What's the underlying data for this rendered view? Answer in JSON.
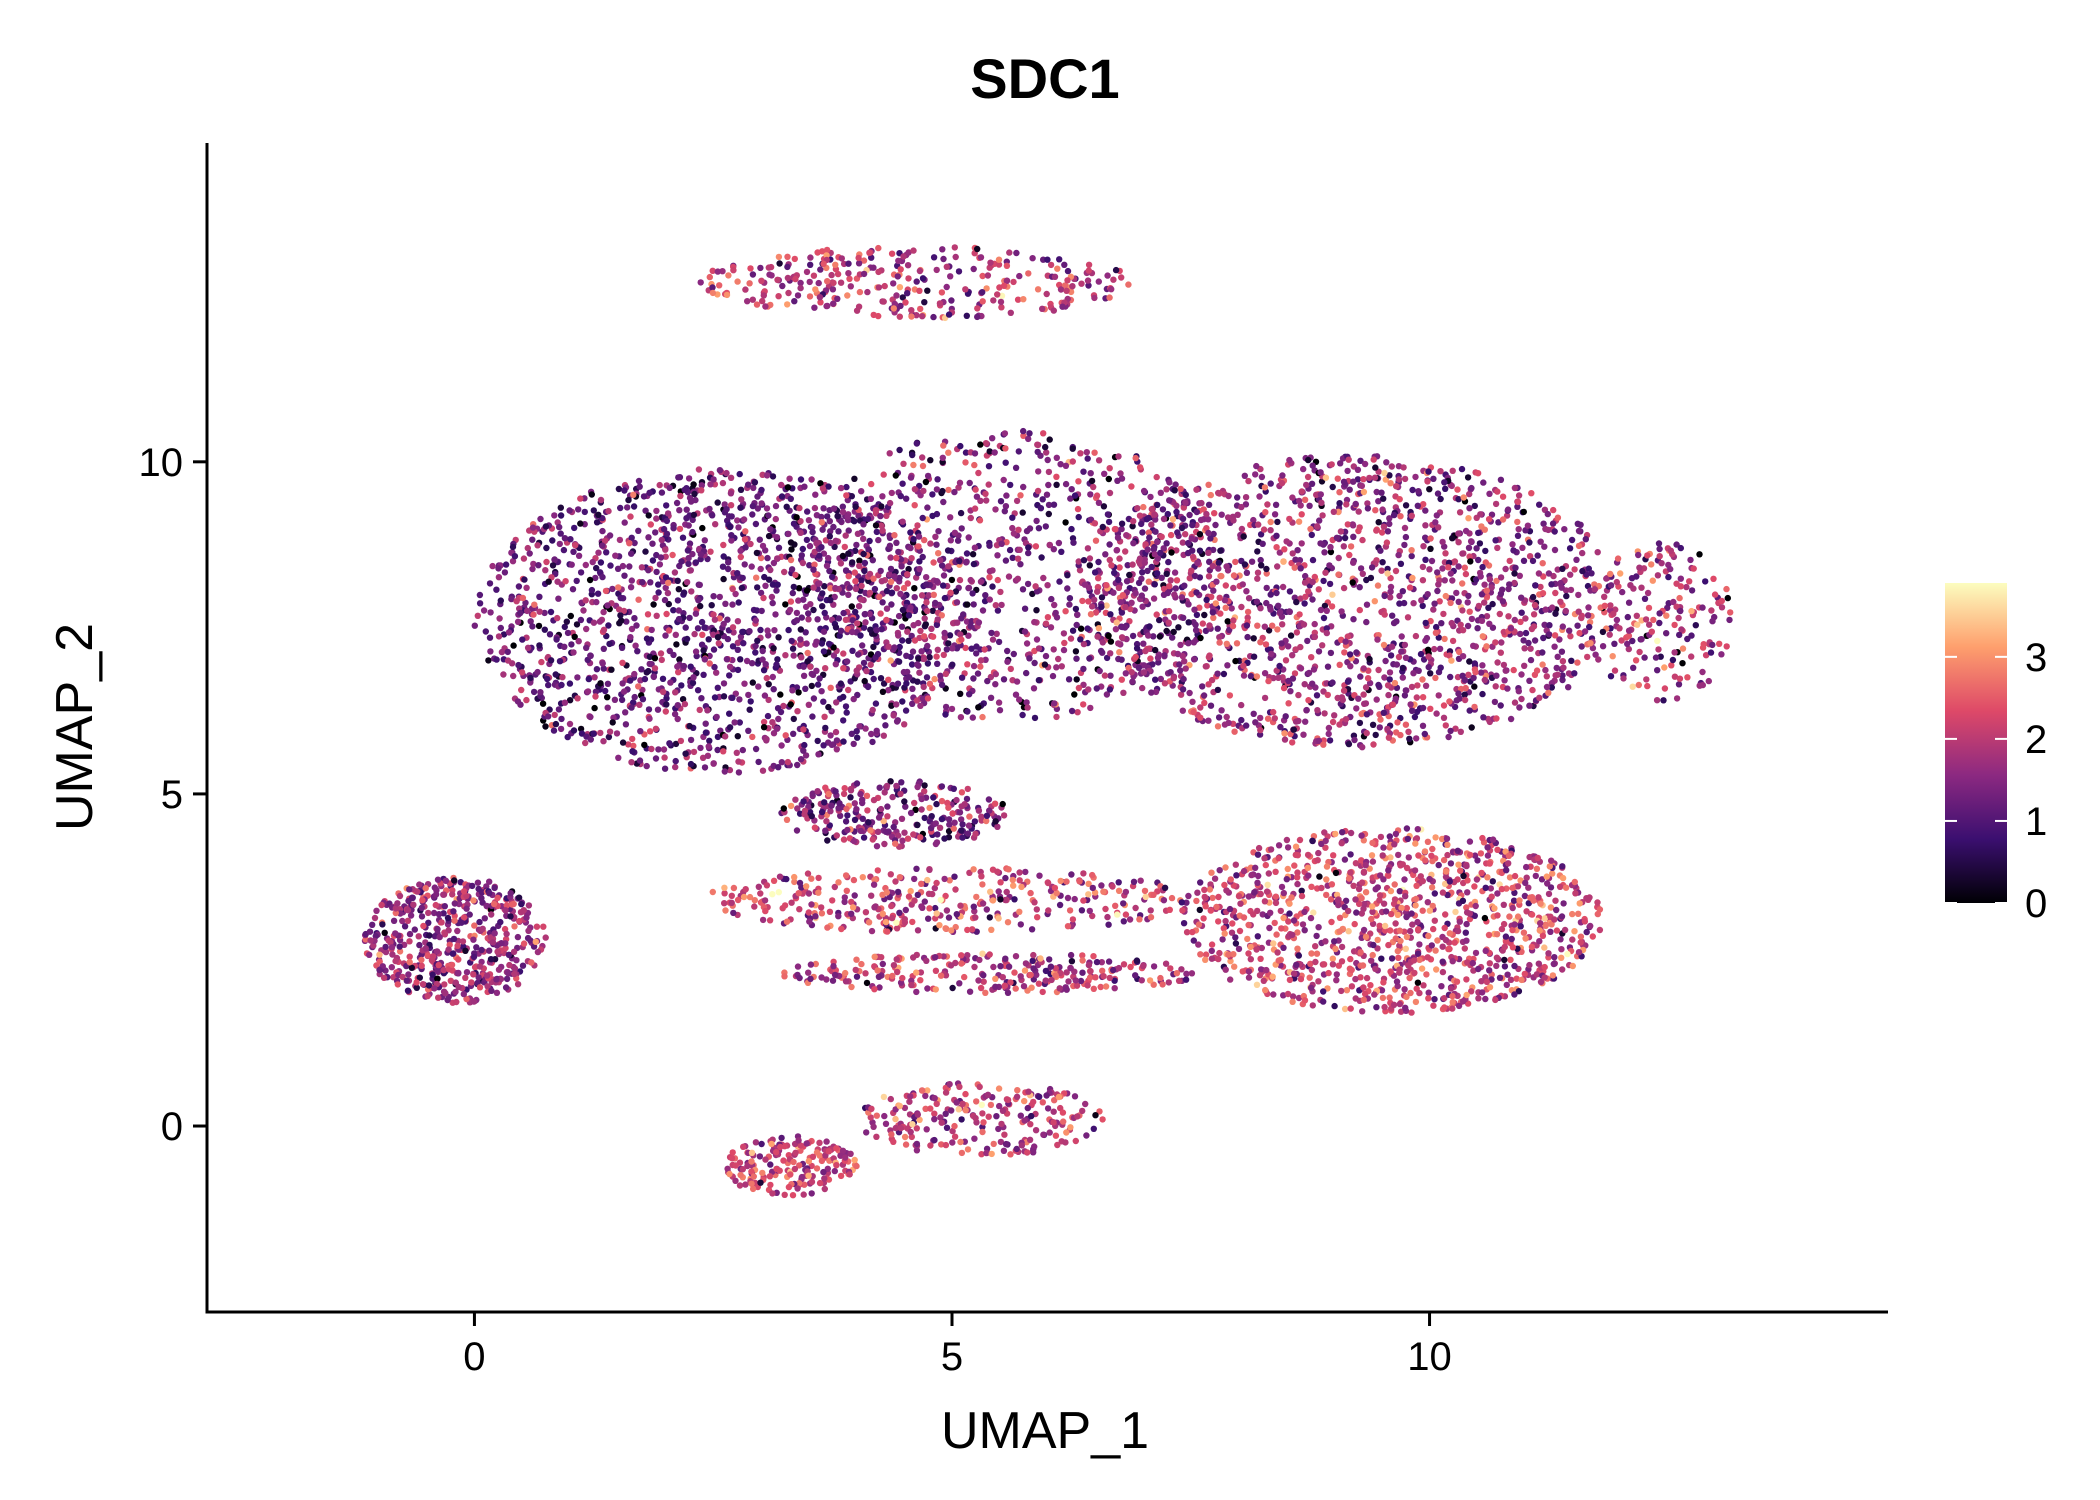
{
  "chart_data": {
    "type": "scatter",
    "title": "SDC1",
    "xlabel": "UMAP_1",
    "ylabel": "UMAP_2",
    "xlim": [
      -2.8,
      14.8
    ],
    "ylim": [
      -2.8,
      14.8
    ],
    "x_ticks": [
      0,
      5,
      10
    ],
    "y_ticks": [
      0,
      5,
      10
    ],
    "x_tick_labels": [
      "0",
      "5",
      "10"
    ],
    "y_tick_labels": [
      "0",
      "5",
      "10"
    ],
    "color_scale": {
      "name": "magma",
      "range": [
        0,
        3.9
      ],
      "ticks": [
        0,
        1,
        2,
        3
      ],
      "tick_labels": [
        "0",
        "1",
        "2",
        "3"
      ],
      "colors": [
        "#000004",
        "#3b0f70",
        "#8c2981",
        "#de4968",
        "#fe9f6d",
        "#fcfdbf"
      ]
    },
    "clusters": [
      {
        "name": "main-left",
        "cx": 2.6,
        "cy": 7.6,
        "rx": 2.6,
        "ry": 2.3,
        "n": 1600,
        "mean": 1.25,
        "sd": 0.6
      },
      {
        "name": "main-right",
        "cx": 9.2,
        "cy": 7.9,
        "rx": 2.8,
        "ry": 2.2,
        "n": 1600,
        "mean": 1.6,
        "sd": 0.65
      },
      {
        "name": "main-center",
        "cx": 5.6,
        "cy": 8.3,
        "rx": 2.3,
        "ry": 2.2,
        "n": 900,
        "mean": 1.4,
        "sd": 0.65
      },
      {
        "name": "top-arc",
        "cx": 4.6,
        "cy": 12.7,
        "rx": 2.3,
        "ry": 0.55,
        "n": 320,
        "mean": 2.0,
        "sd": 0.6
      },
      {
        "name": "right-tip",
        "cx": 12.4,
        "cy": 7.6,
        "rx": 0.8,
        "ry": 1.2,
        "n": 180,
        "mean": 1.8,
        "sd": 0.7
      },
      {
        "name": "lower-right",
        "cx": 9.6,
        "cy": 3.1,
        "rx": 2.2,
        "ry": 1.4,
        "n": 1100,
        "mean": 2.1,
        "sd": 0.65
      },
      {
        "name": "left-island",
        "cx": -0.2,
        "cy": 2.8,
        "rx": 0.95,
        "ry": 0.95,
        "n": 520,
        "mean": 1.6,
        "sd": 0.6
      },
      {
        "name": "mid-band",
        "cx": 5.0,
        "cy": 3.4,
        "rx": 2.6,
        "ry": 0.5,
        "n": 360,
        "mean": 2.1,
        "sd": 0.65
      },
      {
        "name": "lower-band",
        "cx": 5.4,
        "cy": 2.3,
        "rx": 2.2,
        "ry": 0.3,
        "n": 260,
        "mean": 1.9,
        "sd": 0.6
      },
      {
        "name": "bottom-left-arm",
        "cx": 3.3,
        "cy": -0.6,
        "rx": 0.7,
        "ry": 0.45,
        "n": 180,
        "mean": 2.2,
        "sd": 0.55
      },
      {
        "name": "bottom-right-arm",
        "cx": 5.3,
        "cy": 0.1,
        "rx": 1.3,
        "ry": 0.55,
        "n": 230,
        "mean": 2.0,
        "sd": 0.6
      },
      {
        "name": "lower-mid",
        "cx": 4.4,
        "cy": 4.7,
        "rx": 1.2,
        "ry": 0.5,
        "n": 260,
        "mean": 1.5,
        "sd": 0.65
      }
    ]
  }
}
